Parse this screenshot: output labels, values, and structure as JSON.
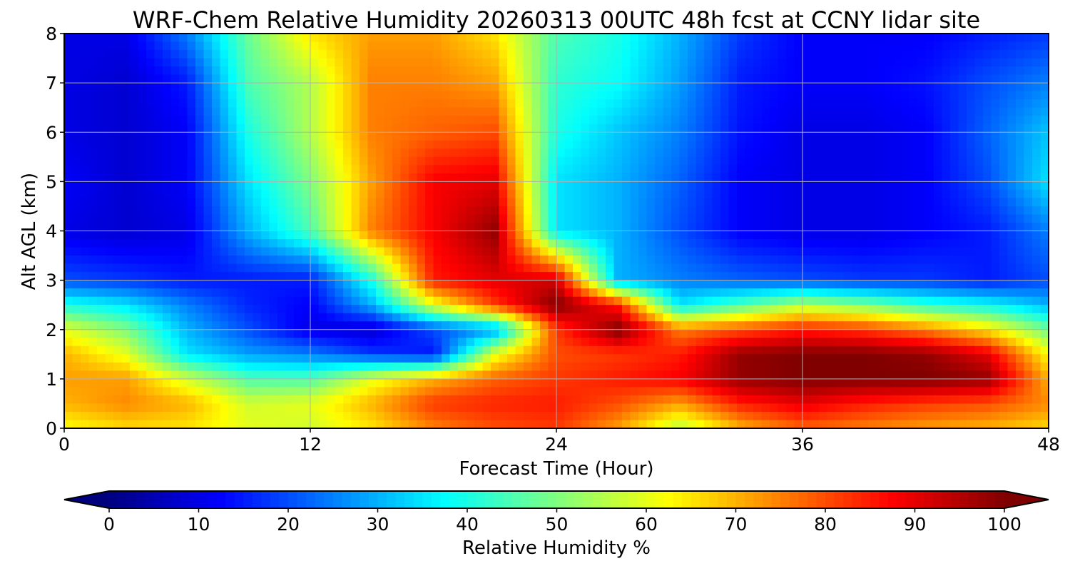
{
  "chart_data": {
    "type": "heatmap",
    "title": "WRF-Chem Relative Humidity 20260313 00UTC 48h fcst at CCNY lidar site",
    "xlabel": "Forecast Time (Hour)",
    "ylabel": "Alt AGL (km)",
    "xlim": [
      0,
      48
    ],
    "ylim": [
      0,
      8
    ],
    "x_ticks": [
      "0",
      "12",
      "24",
      "36",
      "48"
    ],
    "y_ticks": [
      "0",
      "1",
      "2",
      "3",
      "4",
      "5",
      "6",
      "7",
      "8"
    ],
    "grid": true,
    "colormap": "jet",
    "colorbar": {
      "label": "Relative Humidity %",
      "range": [
        0,
        100
      ],
      "ticks": [
        "0",
        "10",
        "20",
        "30",
        "40",
        "50",
        "60",
        "70",
        "80",
        "90",
        "100"
      ],
      "extend": "both",
      "under_color": "#00007f",
      "over_color": "#7f0000"
    },
    "x": [
      0,
      3,
      6,
      9,
      12,
      15,
      18,
      21,
      24,
      27,
      30,
      33,
      36,
      39,
      42,
      45,
      48
    ],
    "y": [
      0,
      0.5,
      1,
      1.5,
      2,
      2.5,
      3,
      4,
      5,
      6,
      7,
      8
    ],
    "z": [
      [
        62,
        66,
        65,
        60,
        58,
        65,
        75,
        80,
        82,
        72,
        55,
        70,
        78,
        75,
        72,
        70,
        66
      ],
      [
        70,
        74,
        70,
        58,
        60,
        70,
        82,
        84,
        85,
        80,
        72,
        85,
        90,
        85,
        82,
        80,
        74
      ],
      [
        72,
        72,
        58,
        45,
        45,
        60,
        70,
        78,
        82,
        85,
        88,
        98,
        100,
        100,
        100,
        98,
        70
      ],
      [
        70,
        60,
        35,
        28,
        25,
        18,
        14,
        60,
        80,
        82,
        85,
        98,
        100,
        100,
        98,
        90,
        62
      ],
      [
        60,
        50,
        30,
        20,
        10,
        8,
        20,
        28,
        82,
        100,
        75,
        80,
        85,
        82,
        75,
        65,
        48
      ],
      [
        40,
        35,
        25,
        16,
        12,
        30,
        60,
        82,
        100,
        85,
        35,
        45,
        55,
        50,
        42,
        38,
        30
      ],
      [
        20,
        18,
        15,
        15,
        15,
        40,
        85,
        90,
        92,
        30,
        25,
        22,
        20,
        18,
        18,
        15,
        20
      ],
      [
        10,
        8,
        10,
        30,
        45,
        75,
        88,
        98,
        35,
        30,
        20,
        12,
        10,
        10,
        12,
        15,
        25
      ],
      [
        12,
        8,
        12,
        35,
        50,
        72,
        88,
        90,
        35,
        30,
        22,
        12,
        10,
        10,
        12,
        20,
        35
      ],
      [
        10,
        8,
        12,
        40,
        55,
        75,
        78,
        80,
        40,
        32,
        25,
        14,
        10,
        10,
        12,
        22,
        32
      ],
      [
        10,
        8,
        15,
        45,
        55,
        75,
        75,
        72,
        42,
        38,
        28,
        15,
        12,
        12,
        14,
        20,
        25
      ],
      [
        10,
        10,
        25,
        48,
        65,
        72,
        72,
        65,
        45,
        40,
        30,
        18,
        12,
        12,
        12,
        15,
        18
      ]
    ]
  }
}
